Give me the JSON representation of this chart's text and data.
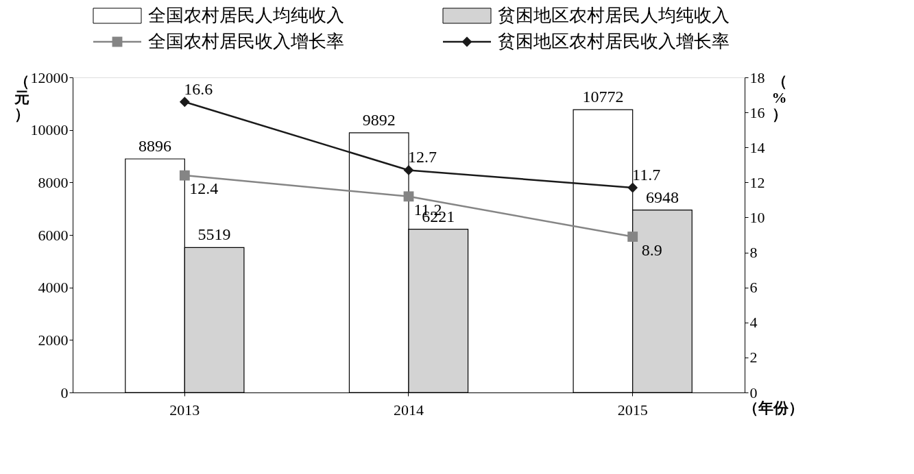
{
  "chart_data": {
    "type": "bar",
    "categories": [
      "2013",
      "2014",
      "2015"
    ],
    "ylabel": "（元）",
    "y2label": "（%）",
    "xlabel": "（年份）",
    "ylim": [
      0,
      12000
    ],
    "yticks": [
      0,
      2000,
      4000,
      6000,
      8000,
      10000,
      12000
    ],
    "y2lim": [
      0,
      18
    ],
    "y2ticks": [
      0,
      2,
      4,
      6,
      8,
      10,
      12,
      14,
      16,
      18
    ],
    "series": [
      {
        "name": "全国农村居民人均纯收入",
        "color": "#ffffff",
        "values": [
          8896,
          9892,
          10772
        ]
      },
      {
        "name": "贫困地区农村居民人均纯收入",
        "color": "#d3d3d3",
        "values": [
          5519,
          6221,
          6948
        ]
      },
      {
        "name": "全国农村居民收入增长率",
        "type": "line",
        "axis": "y2",
        "marker": "square",
        "color": "#858585",
        "values": [
          12.4,
          11.2,
          8.9
        ]
      },
      {
        "name": "贫困地区农村居民收入增长率",
        "type": "line",
        "axis": "y2",
        "marker": "diamond",
        "color": "#1a1a1a",
        "values": [
          16.6,
          12.7,
          11.7
        ]
      }
    ],
    "data_labels": true,
    "grid": false,
    "legend": "top"
  }
}
